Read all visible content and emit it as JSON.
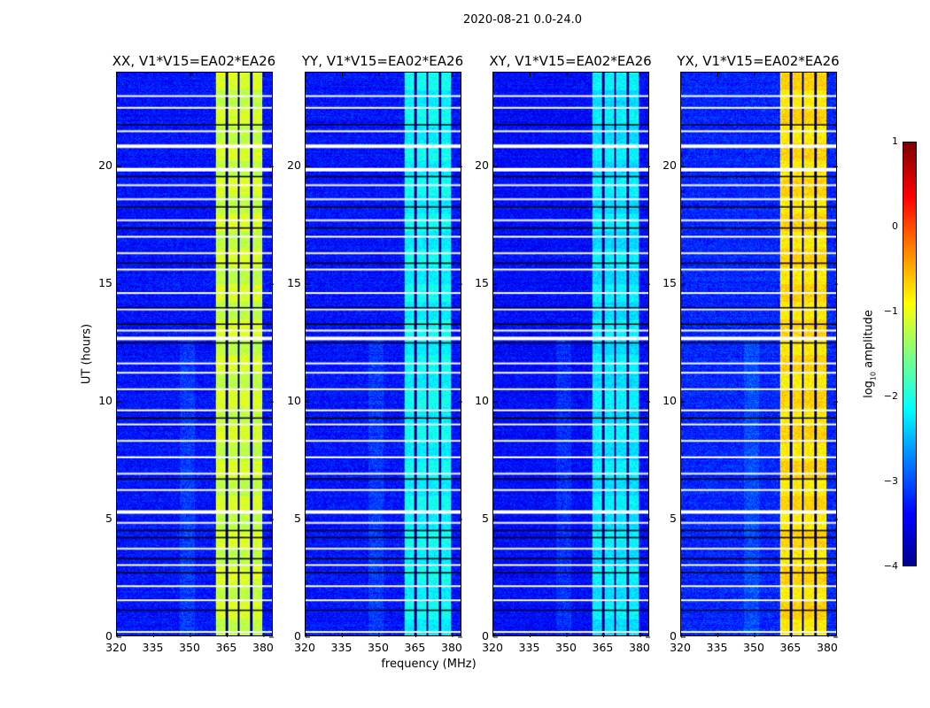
{
  "suptitle": "2020-08-21 0.0-24.0",
  "chart_data": {
    "type": "heatmap",
    "xlabel": "frequency (MHz)",
    "ylabel": "UT (hours)",
    "xlim": [
      320,
      384
    ],
    "ylim": [
      0,
      24
    ],
    "xticks": [
      "320",
      "335",
      "350",
      "365",
      "380"
    ],
    "xtick_values": [
      320,
      335,
      350,
      365,
      380
    ],
    "yticks": [
      "0",
      "5",
      "10",
      "15",
      "20"
    ],
    "ytick_values": [
      0,
      5,
      10,
      15,
      20
    ],
    "colormap": "jet",
    "colorbar": {
      "label": "log10 amplitude",
      "label_main": "log",
      "label_sub": "10",
      "label_tail": " amplitude",
      "range": [
        -4,
        1
      ],
      "ticks": [
        "1",
        "0",
        "−1",
        "−2",
        "−3",
        "−4"
      ],
      "tick_values": [
        1,
        0,
        -1,
        -2,
        -3,
        -4
      ]
    },
    "band_MHz": [
      360.5,
      380
    ],
    "subband_gaps_MHz": [
      365.2,
      370.2,
      375.3
    ],
    "flagged_white_hours": [
      0.15,
      1.5,
      2.1,
      3.0,
      3.7,
      4.8,
      5.3,
      6.2,
      6.9,
      7.6,
      8.3,
      9.0,
      9.6,
      10.5,
      11.2,
      11.6,
      12.7,
      13.0,
      13.9,
      14.6,
      15.6,
      16.3,
      17.0,
      17.7,
      18.6,
      19.2,
      19.9,
      20.9,
      21.5,
      22.5,
      23.0
    ],
    "black_rows_hours": [
      1.1,
      2.7,
      3.3,
      4.2,
      4.5,
      6.7,
      9.3,
      12.5,
      13.3,
      14.0,
      15.9,
      17.4,
      18.3,
      19.6,
      21.8
    ],
    "panels": [
      {
        "title": "XX, V1*V15=EA02*EA26",
        "base_log_amp": -3.3,
        "band_log_amp": -1.2
      },
      {
        "title": "YY, V1*V15=EA02*EA26",
        "base_log_amp": -3.3,
        "band_log_amp": -2.2
      },
      {
        "title": "XY, V1*V15=EA02*EA26",
        "base_log_amp": -3.35,
        "band_log_amp": -2.3
      },
      {
        "title": "YX, V1*V15=EA02*EA26",
        "base_log_amp": -3.2,
        "band_log_amp": -0.8
      }
    ]
  }
}
